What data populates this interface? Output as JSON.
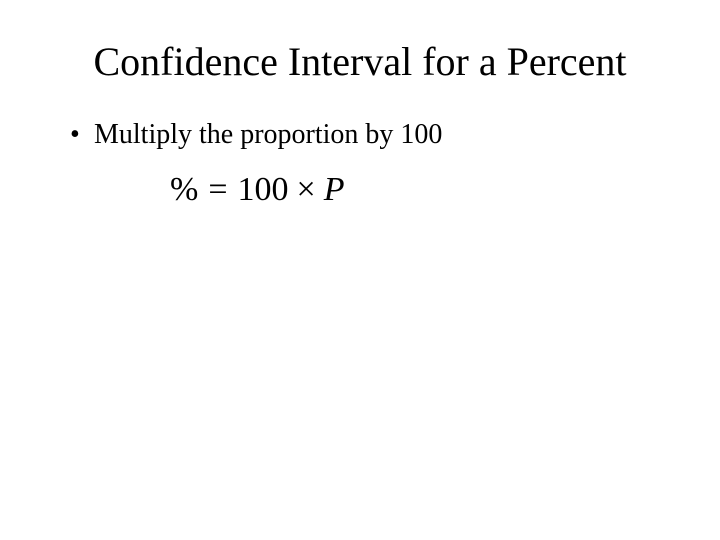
{
  "slide": {
    "title": "Confidence Interval for a Percent",
    "title_fontsize": 40,
    "title_color": "#000000",
    "bullets": [
      {
        "marker": "•",
        "text": "Multiply the proportion by 100"
      }
    ],
    "body_fontsize": 28,
    "formula": {
      "percent": "%",
      "equals": "=",
      "hundred": "100",
      "times": "×",
      "P": "P",
      "fontsize": 34,
      "font_style": "italic"
    },
    "background_color": "#ffffff",
    "text_color": "#000000",
    "font_family": "Times New Roman"
  }
}
